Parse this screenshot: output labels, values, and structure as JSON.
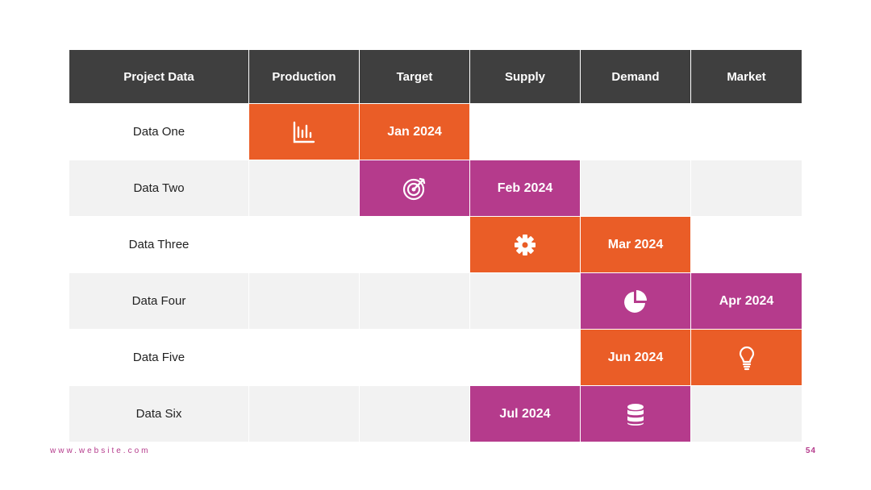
{
  "colors": {
    "header_bg": "#3f3f3f",
    "orange": "#ea5d27",
    "purple": "#b53b8c",
    "row_alt": "#f2f2f2"
  },
  "table": {
    "headers": [
      "Project Data",
      "Production",
      "Target",
      "Supply",
      "Demand",
      "Market"
    ],
    "rows": [
      {
        "label": "Data One",
        "icon": "bar-chart-icon",
        "date": "Jan 2024"
      },
      {
        "label": "Data Two",
        "icon": "target-icon",
        "date": "Feb 2024"
      },
      {
        "label": "Data Three",
        "icon": "gear-icon",
        "date": "Mar 2024"
      },
      {
        "label": "Data Four",
        "icon": "pie-chart-icon",
        "date": "Apr 2024"
      },
      {
        "label": "Data Five",
        "icon": "lightbulb-icon",
        "date": "Jun 2024"
      },
      {
        "label": "Data Six",
        "icon": "database-icon",
        "date": "Jul 2024"
      }
    ]
  },
  "footer": {
    "website": "www.website.com",
    "page_number": "54"
  }
}
